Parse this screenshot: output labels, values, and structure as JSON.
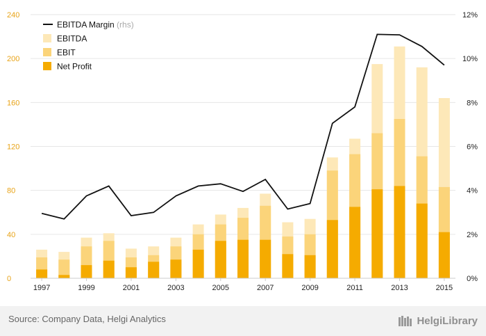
{
  "chart_data": {
    "type": "bar",
    "x_tick_labels": [
      "1997",
      "1999",
      "2001",
      "2003",
      "2005",
      "2007",
      "2009",
      "2011",
      "2013",
      "2015"
    ],
    "categories": [
      "1997",
      "1998",
      "1999",
      "2000",
      "2001",
      "2002",
      "2003",
      "2004",
      "2005",
      "2006",
      "2007",
      "2008",
      "2009",
      "2010",
      "2011",
      "2012",
      "2013",
      "2014",
      "2015"
    ],
    "series": [
      {
        "name": "EBITDA",
        "type": "bar",
        "axis": "left",
        "color": "#fde8b8",
        "values": [
          26,
          24,
          37,
          41,
          27,
          29,
          37,
          49,
          58,
          64,
          77,
          51,
          54,
          110,
          127,
          195,
          211,
          192,
          164
        ]
      },
      {
        "name": "EBIT",
        "type": "bar",
        "axis": "left",
        "color": "#fbd47a",
        "values": [
          19,
          17,
          29,
          34,
          19,
          21,
          29,
          40,
          49,
          55,
          66,
          38,
          40,
          98,
          113,
          132,
          145,
          111,
          83
        ]
      },
      {
        "name": "Net Profit",
        "type": "bar",
        "axis": "left",
        "color": "#f5ab00",
        "values": [
          8,
          3,
          12,
          16,
          10,
          15,
          17,
          26,
          34,
          35,
          35,
          22,
          21,
          53,
          65,
          81,
          84,
          68,
          42
        ]
      },
      {
        "name": "EBITDA Margin",
        "suffix": "(rhs)",
        "type": "line",
        "axis": "right",
        "color": "#111111",
        "values": [
          2.95,
          2.7,
          3.75,
          4.2,
          2.85,
          3.0,
          3.75,
          4.2,
          4.3,
          3.95,
          4.5,
          3.15,
          3.4,
          7.05,
          7.8,
          11.1,
          11.08,
          10.55,
          9.7
        ]
      }
    ],
    "y_left": {
      "min": 0,
      "max": 240,
      "ticks": [
        0,
        40,
        80,
        120,
        160,
        200,
        240
      ],
      "color": "#e8a317"
    },
    "y_right": {
      "min": 0,
      "max": 12,
      "ticks": [
        0,
        2,
        4,
        6,
        8,
        10,
        12
      ],
      "unit": "%"
    },
    "legend_position": "top-left",
    "grid": true
  },
  "source_text": "Source: Company Data, Helgi Analytics",
  "logo_text": "HelgiLibrary"
}
